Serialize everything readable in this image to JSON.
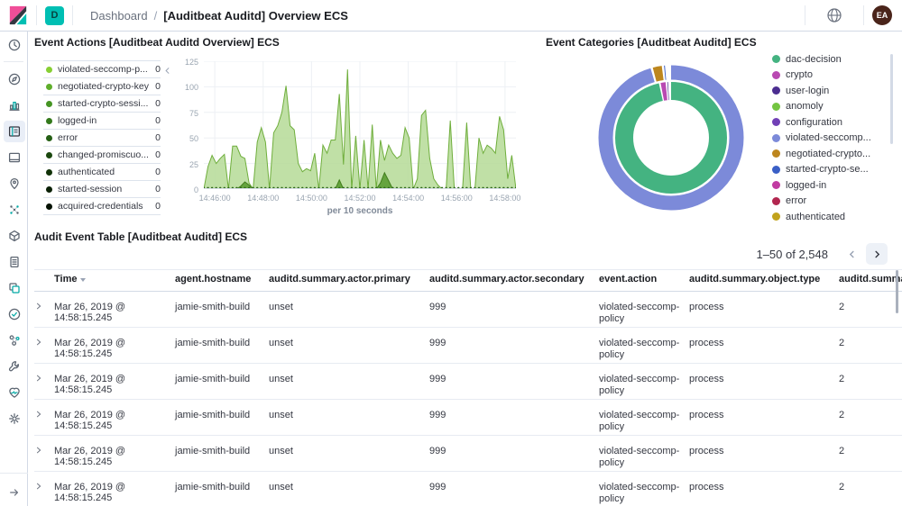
{
  "topbar": {
    "space_badge": "D",
    "breadcrumb_section": "Dashboard",
    "breadcrumb_separator": "/",
    "title": "[Auditbeat Auditd] Overview ECS",
    "avatar_initials": "EA"
  },
  "sidebar": {
    "items": [
      {
        "name": "recently-viewed",
        "selected": false
      },
      {
        "name": "discover",
        "selected": false
      },
      {
        "name": "visualize",
        "selected": false
      },
      {
        "name": "dashboard",
        "selected": true
      },
      {
        "name": "canvas",
        "selected": false
      },
      {
        "name": "maps",
        "selected": false
      },
      {
        "name": "machine-learning",
        "selected": false
      },
      {
        "name": "infrastructure",
        "selected": false
      },
      {
        "name": "logs",
        "selected": false
      },
      {
        "name": "apm",
        "selected": false
      },
      {
        "name": "uptime",
        "selected": false
      },
      {
        "name": "graph",
        "selected": false
      },
      {
        "name": "dev-tools",
        "selected": false
      },
      {
        "name": "monitoring",
        "selected": false
      },
      {
        "name": "management",
        "selected": false
      }
    ]
  },
  "panels": {
    "event_actions": {
      "title": "Event Actions [Auditbeat Auditd Overview] ECS",
      "legend": [
        {
          "label": "violated-seccomp-p...",
          "value": "0",
          "color": "#87cf33"
        },
        {
          "label": "negotiated-crypto-key",
          "value": "0",
          "color": "#5fae2b"
        },
        {
          "label": "started-crypto-sessi...",
          "value": "0",
          "color": "#459423"
        },
        {
          "label": "logged-in",
          "value": "0",
          "color": "#33791b"
        },
        {
          "label": "error",
          "value": "0",
          "color": "#255f14"
        },
        {
          "label": "changed-promiscuo...",
          "value": "0",
          "color": "#1a470e"
        },
        {
          "label": "authenticated",
          "value": "0",
          "color": "#113208"
        },
        {
          "label": "started-session",
          "value": "0",
          "color": "#0a2005"
        },
        {
          "label": "acquired-credentials",
          "value": "0",
          "color": "#041102"
        }
      ]
    },
    "event_categories": {
      "title": "Event Categories [Auditbeat Auditd] ECS",
      "legend": [
        {
          "label": "dac-decision",
          "color": "#44b381"
        },
        {
          "label": "crypto",
          "color": "#b949b2"
        },
        {
          "label": "user-login",
          "color": "#4b2d90"
        },
        {
          "label": "anomoly",
          "color": "#74c541"
        },
        {
          "label": "configuration",
          "color": "#7140b6"
        },
        {
          "label": "violated-seccomp...",
          "color": "#7c8ad9"
        },
        {
          "label": "negotiated-crypto...",
          "color": "#bd861e"
        },
        {
          "label": "started-crypto-se...",
          "color": "#3a5fc6"
        },
        {
          "label": "logged-in",
          "color": "#c13ba2"
        },
        {
          "label": "error",
          "color": "#b2264f"
        },
        {
          "label": "authenticated",
          "color": "#c2a31c"
        }
      ]
    },
    "audit_table": {
      "title": "Audit Event Table [Auditbeat Auditd] ECS",
      "pagination": {
        "range": "1–50 of 2,548"
      },
      "columns": [
        "Time",
        "agent.hostname",
        "auditd.summary.actor.primary",
        "auditd.summary.actor.secondary",
        "event.action",
        "auditd.summary.object.type",
        "auditd.summary"
      ],
      "rows": [
        {
          "time": "Mar 26, 2019 @ 14:58:15.245",
          "hostname": "jamie-smith-build",
          "actor_primary": "unset",
          "actor_secondary": "999",
          "event_action": "violated-seccomp-policy",
          "object_type": "process",
          "summary": "2"
        },
        {
          "time": "Mar 26, 2019 @ 14:58:15.245",
          "hostname": "jamie-smith-build",
          "actor_primary": "unset",
          "actor_secondary": "999",
          "event_action": "violated-seccomp-policy",
          "object_type": "process",
          "summary": "2"
        },
        {
          "time": "Mar 26, 2019 @ 14:58:15.245",
          "hostname": "jamie-smith-build",
          "actor_primary": "unset",
          "actor_secondary": "999",
          "event_action": "violated-seccomp-policy",
          "object_type": "process",
          "summary": "2"
        },
        {
          "time": "Mar 26, 2019 @ 14:58:15.245",
          "hostname": "jamie-smith-build",
          "actor_primary": "unset",
          "actor_secondary": "999",
          "event_action": "violated-seccomp-policy",
          "object_type": "process",
          "summary": "2"
        },
        {
          "time": "Mar 26, 2019 @ 14:58:15.245",
          "hostname": "jamie-smith-build",
          "actor_primary": "unset",
          "actor_secondary": "999",
          "event_action": "violated-seccomp-policy",
          "object_type": "process",
          "summary": "2"
        },
        {
          "time": "Mar 26, 2019 @ 14:58:15.245",
          "hostname": "jamie-smith-build",
          "actor_primary": "unset",
          "actor_secondary": "999",
          "event_action": "violated-seccomp-policy",
          "object_type": "process",
          "summary": "2"
        }
      ]
    }
  },
  "chart_data": [
    {
      "type": "area",
      "title": "Event Actions [Auditbeat Auditd Overview] ECS",
      "xlabel": "per 10 seconds",
      "x_ticks": [
        "14:46:00",
        "14:48:00",
        "14:50:00",
        "14:52:00",
        "14:54:00",
        "14:56:00",
        "14:58:00"
      ],
      "ylim": [
        0,
        125
      ],
      "y_ticks": [
        0,
        25,
        50,
        75,
        100,
        125
      ],
      "grid": true,
      "legend_position": "left",
      "series": [
        {
          "name": "series-1",
          "stroke": "#6fae3c",
          "fill": "#b5da97",
          "values": [
            0,
            22,
            33,
            25,
            30,
            34,
            0,
            42,
            42,
            32,
            30,
            6,
            0,
            46,
            60,
            46,
            0,
            55,
            62,
            75,
            101,
            62,
            58,
            25,
            17,
            20,
            18,
            35,
            0,
            43,
            35,
            48,
            48,
            93,
            24,
            117,
            0,
            52,
            0,
            48,
            0,
            63,
            0,
            48,
            28,
            43,
            35,
            30,
            33,
            60,
            50,
            0,
            10,
            72,
            77,
            30,
            10,
            4,
            0,
            0,
            67,
            0,
            0,
            0,
            65,
            0,
            0,
            50,
            35,
            43,
            40,
            35,
            71,
            58,
            10,
            33,
            0
          ]
        },
        {
          "name": "series-2",
          "stroke": "#417d1d",
          "fill": "#55992b",
          "values": [
            0,
            0,
            0,
            0,
            0,
            0,
            0,
            0,
            0,
            3,
            7,
            4,
            0,
            0,
            0,
            0,
            0,
            0,
            0,
            0,
            0,
            0,
            0,
            0,
            0,
            0,
            0,
            0,
            0,
            0,
            0,
            0,
            0,
            9,
            0,
            0,
            0,
            0,
            0,
            0,
            0,
            0,
            0,
            6,
            16,
            8,
            0,
            0,
            0,
            0,
            0,
            0,
            0,
            0,
            0,
            0,
            0,
            0,
            0,
            0,
            0,
            0,
            0,
            0,
            0,
            0,
            0,
            0,
            0,
            0,
            0,
            0,
            0,
            0,
            0,
            0,
            0
          ]
        }
      ],
      "baseline_marker_color": "#2c661a"
    },
    {
      "type": "pie",
      "title": "Event Categories [Auditbeat Auditd] ECS",
      "legend_position": "right",
      "rings": [
        {
          "name": "inner",
          "slices": [
            {
              "label": "dac-decision",
              "color": "#44b381",
              "share": 96.9
            },
            {
              "label": "crypto",
              "color": "#b949b2",
              "share": 1.9
            },
            {
              "label": "user-login",
              "color": "#4b2d90",
              "share": 0.7
            }
          ]
        },
        {
          "name": "outer",
          "slices": [
            {
              "label": "violated-seccomp-policy",
              "color": "#7c8ad9",
              "share": 95.9
            },
            {
              "label": "negotiated-crypto-key",
              "color": "#bd861e",
              "share": 2.5
            },
            {
              "label": "started-crypto-session",
              "color": "#3a5fc6",
              "share": 0.6
            }
          ]
        }
      ]
    }
  ]
}
